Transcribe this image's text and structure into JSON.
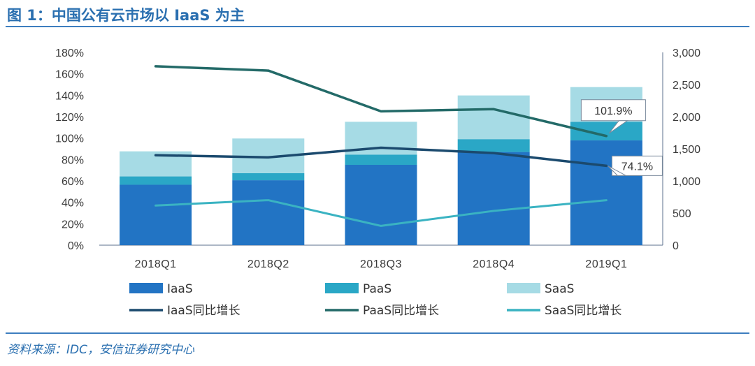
{
  "header": {
    "title": "图 1：中国公有云市场以 IaaS 为主"
  },
  "footer": {
    "source": "资料来源：IDC，安信证券研究中心"
  },
  "colors": {
    "iaas": "#2274c4",
    "paas": "#2aa7c6",
    "saas": "#a6dbe5",
    "iaas_growth": "#1b4a6e",
    "paas_growth": "#236a68",
    "saas_growth": "#3ab3c2",
    "title": "#2a6fb0",
    "axis": "#5b6f8c"
  },
  "chart_data": {
    "type": "bar",
    "title": "中国公有云市场以 IaaS 为主",
    "categories": [
      "2018Q1",
      "2018Q2",
      "2018Q3",
      "2018Q4",
      "2019Q1"
    ],
    "y_left": {
      "ylim": [
        0,
        180
      ],
      "ticks": [
        "0%",
        "20%",
        "40%",
        "60%",
        "80%",
        "100%",
        "120%",
        "140%",
        "160%",
        "180%"
      ]
    },
    "y_right": {
      "ylim": [
        0,
        3000
      ],
      "ticks": [
        "0",
        "500",
        "1,000",
        "1,500",
        "2,000",
        "2,500",
        "3,000"
      ]
    },
    "bar_series": [
      {
        "name": "IaaS",
        "axis": "right",
        "values": [
          940,
          1010,
          1250,
          1450,
          1630
        ]
      },
      {
        "name": "PaaS",
        "axis": "right",
        "values": [
          130,
          110,
          160,
          200,
          290
        ]
      },
      {
        "name": "SaaS",
        "axis": "right",
        "values": [
          390,
          540,
          510,
          680,
          540
        ]
      }
    ],
    "line_series": [
      {
        "name": "IaaS同比增长",
        "axis": "left",
        "values": [
          84,
          82,
          91,
          86,
          74.1
        ]
      },
      {
        "name": "PaaS同比增长",
        "axis": "left",
        "values": [
          167,
          163,
          125,
          127,
          101.9
        ]
      },
      {
        "name": "SaaS同比增长",
        "axis": "left",
        "values": [
          37,
          42,
          18,
          32,
          42
        ]
      }
    ],
    "annotations": [
      {
        "series": "PaaS同比增长",
        "category": "2019Q1",
        "text": "101.9%"
      },
      {
        "series": "IaaS同比增长",
        "category": "2019Q1",
        "text": "74.1%"
      }
    ],
    "legend": {
      "position": "bottom",
      "entries": [
        "IaaS",
        "PaaS",
        "SaaS",
        "IaaS同比增长",
        "PaaS同比增长",
        "SaaS同比增长"
      ]
    }
  }
}
